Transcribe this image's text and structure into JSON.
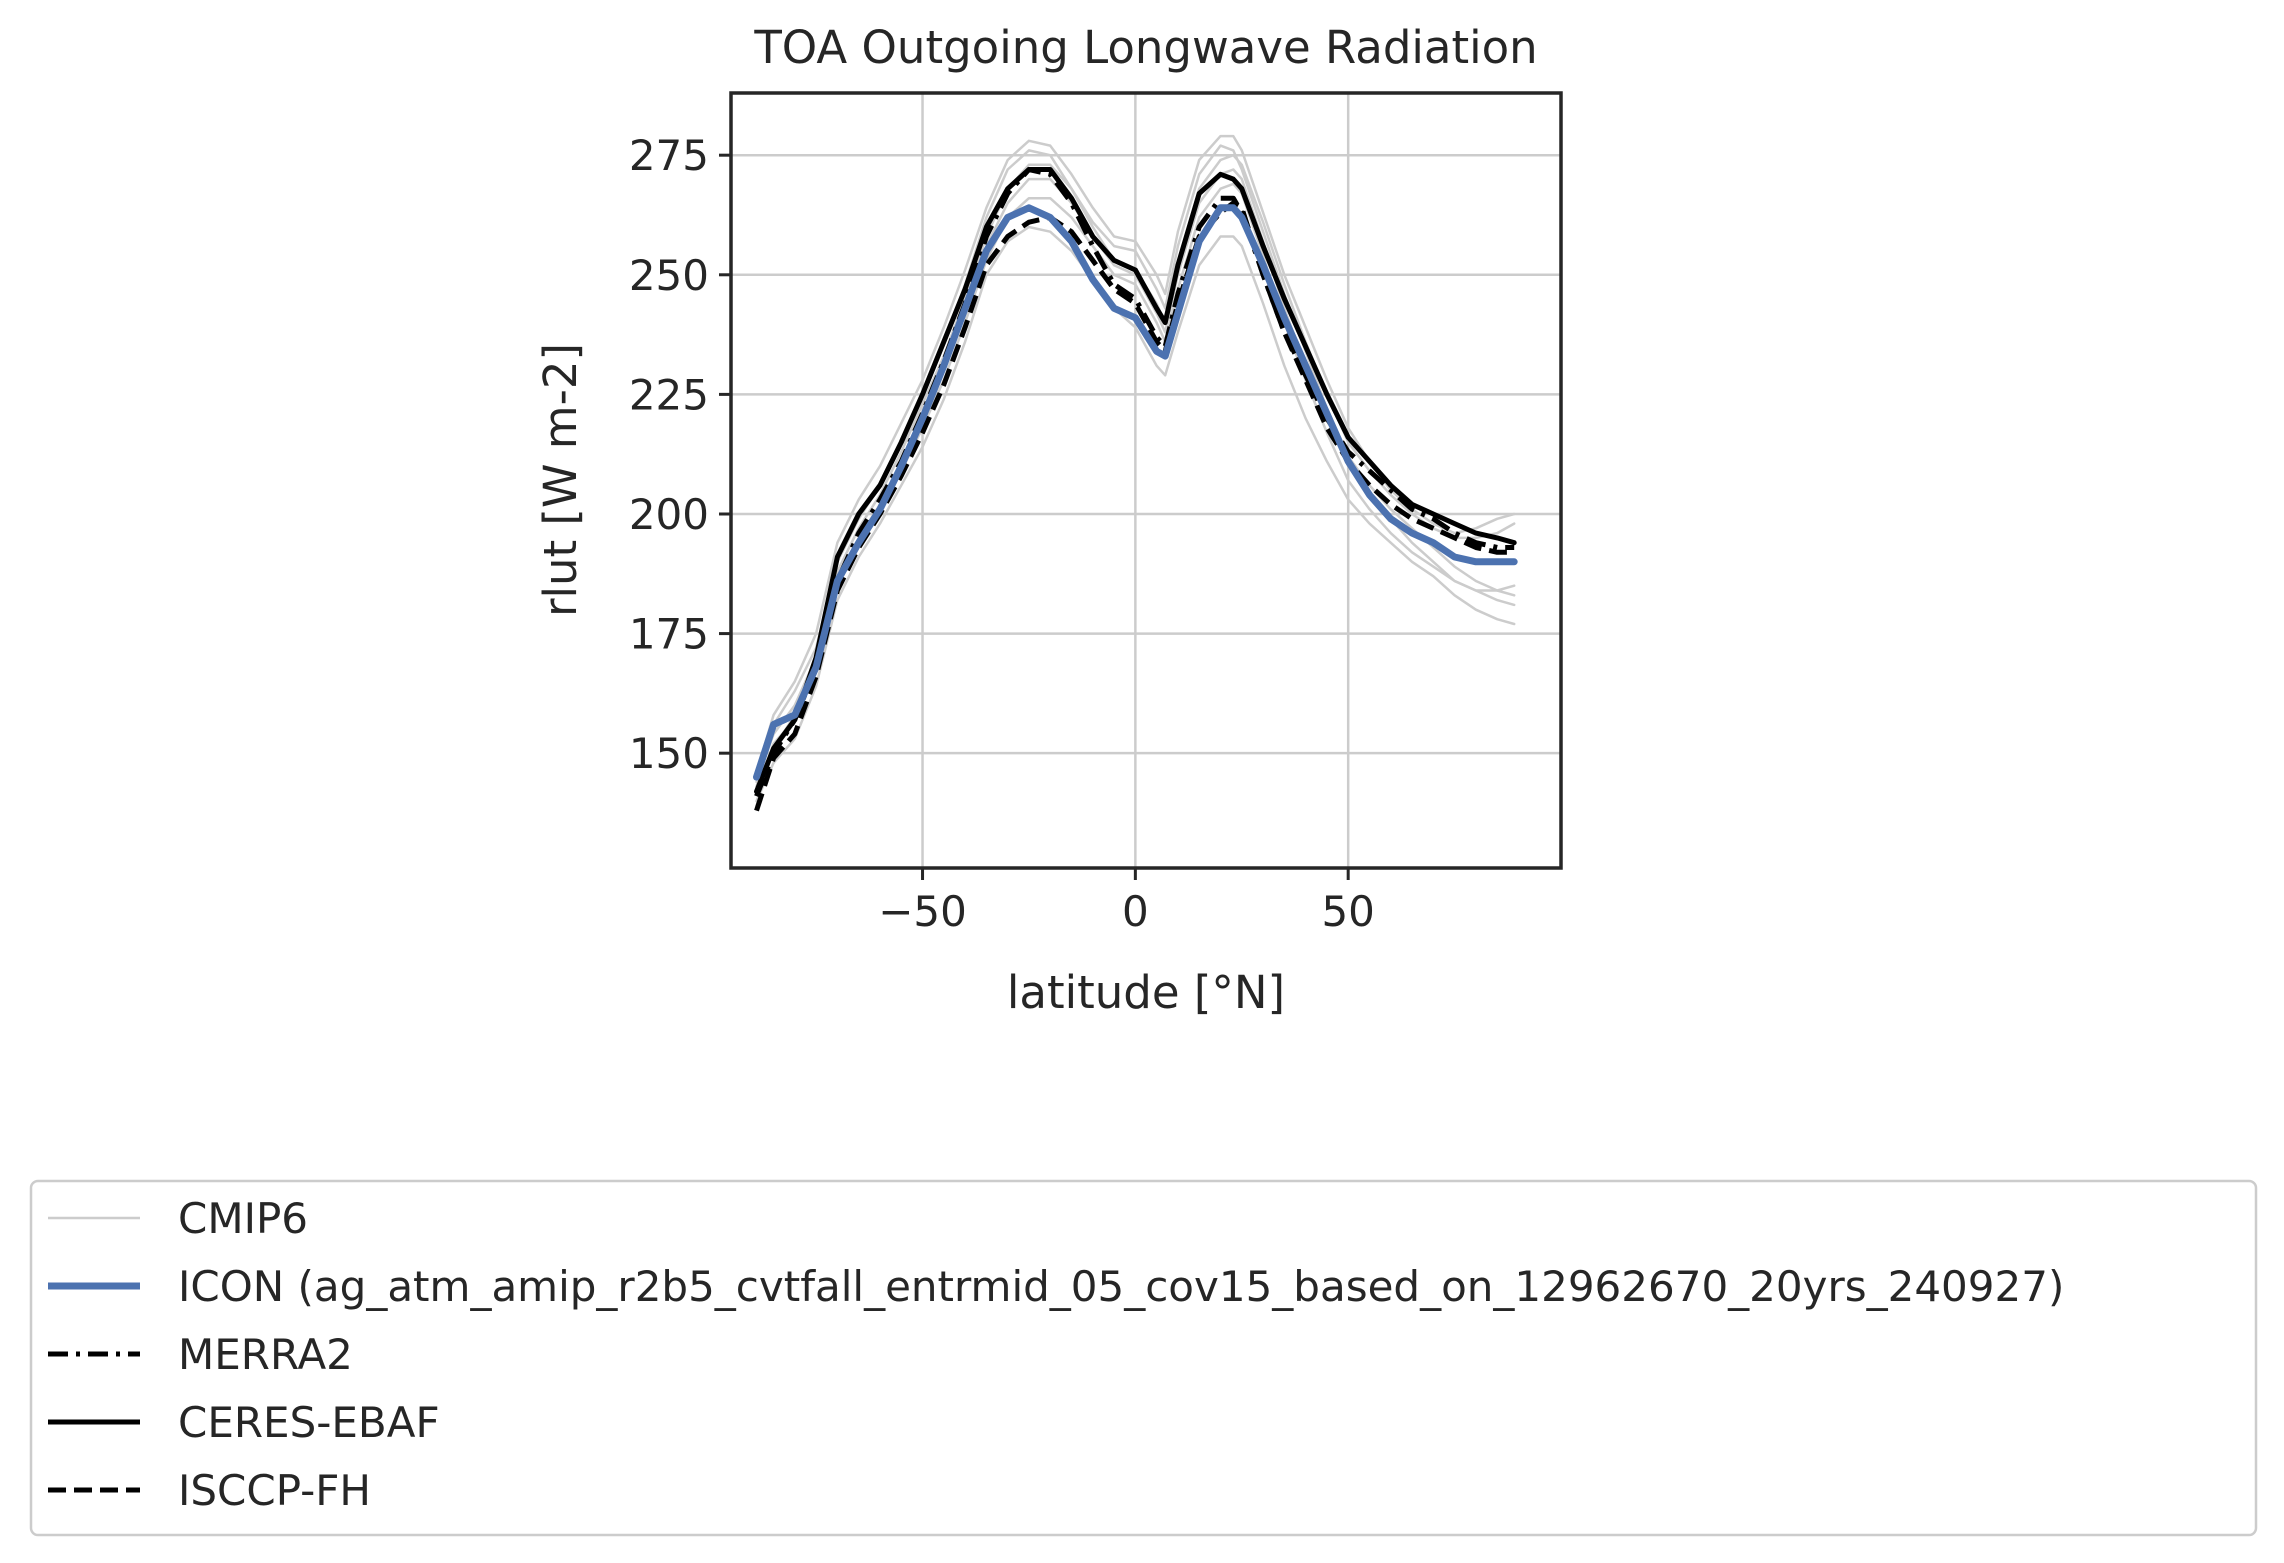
{
  "chart_data": {
    "type": "line",
    "title": "TOA Outgoing Longwave Radiation",
    "xlabel": "latitude [°N]",
    "ylabel": "rlut [W m-2]",
    "xlim": [
      -95,
      100
    ],
    "ylim": [
      126,
      288
    ],
    "xticks": [
      -50,
      0,
      50
    ],
    "xtick_labels": [
      "−50",
      "0",
      "50"
    ],
    "yticks": [
      150,
      175,
      200,
      225,
      250,
      275
    ],
    "ytick_labels": [
      "150",
      "175",
      "200",
      "225",
      "250",
      "275"
    ],
    "grid": true,
    "legend_position": "below the plot",
    "colors": {
      "cmip6": "#cccccc",
      "icon": "#4c72b0",
      "obs": "#000000",
      "grid": "#cccccc",
      "axes": "#262626"
    },
    "legend": [
      {
        "name": "CMIP6",
        "style": "thin-gray"
      },
      {
        "name": "ICON (ag_atm_amip_r2b5_cvtfall_entrmid_05_cov15_based_on_12962670_20yrs_240927)",
        "style": "thick-blue"
      },
      {
        "name": "MERRA2",
        "style": "dashdot"
      },
      {
        "name": "CERES-EBAF",
        "style": "solid"
      },
      {
        "name": "ISCCP-FH",
        "style": "dashed"
      }
    ],
    "x": [
      -89,
      -85,
      -80,
      -75,
      -70,
      -65,
      -60,
      -55,
      -50,
      -45,
      -40,
      -35,
      -30,
      -25,
      -20,
      -15,
      -10,
      -5,
      0,
      5,
      7,
      10,
      15,
      20,
      23,
      25,
      30,
      35,
      40,
      45,
      50,
      55,
      60,
      65,
      70,
      75,
      80,
      85,
      89
    ],
    "series": [
      {
        "name": "ICON (ag_atm_amip_r2b5_cvtfall_entrmid_05_cov15_based_on_12962670_20yrs_240927)",
        "kind": "icon",
        "values": [
          145,
          156,
          158,
          168,
          186,
          194,
          201,
          210,
          220,
          231,
          243,
          255,
          262,
          264,
          262,
          257,
          249,
          243,
          241,
          234,
          233,
          242,
          257,
          264,
          264,
          262,
          252,
          241,
          231,
          221,
          211,
          204,
          199,
          196,
          194,
          191,
          190,
          190,
          190
        ]
      },
      {
        "name": "MERRA2",
        "kind": "dashdot",
        "values": [
          141,
          150,
          157,
          168,
          186,
          196,
          203,
          211,
          221,
          232,
          244,
          258,
          267,
          272,
          271,
          265,
          256,
          248,
          245,
          237,
          235,
          246,
          260,
          266,
          266,
          263,
          250,
          238,
          229,
          220,
          213,
          209,
          205,
          201,
          199,
          196,
          194,
          193,
          193
        ]
      },
      {
        "name": "CERES-EBAF",
        "kind": "solid",
        "values": [
          142,
          151,
          157,
          170,
          191,
          200,
          206,
          215,
          225,
          236,
          247,
          260,
          268,
          272,
          272,
          266,
          258,
          253,
          251,
          243,
          240,
          252,
          267,
          271,
          270,
          268,
          256,
          245,
          235,
          225,
          216,
          211,
          206,
          202,
          200,
          198,
          196,
          195,
          194
        ]
      },
      {
        "name": "ISCCP-FH",
        "kind": "dashed",
        "values": [
          138,
          149,
          154,
          166,
          184,
          193,
          200,
          208,
          217,
          227,
          239,
          252,
          258,
          261,
          262,
          259,
          253,
          247,
          244,
          236,
          234,
          244,
          258,
          263,
          265,
          264,
          250,
          238,
          228,
          218,
          211,
          206,
          202,
          199,
          197,
          195,
          193,
          192,
          192
        ]
      },
      {
        "name": "CMIP6",
        "kind": "cmip",
        "values": [
          143,
          156,
          163,
          172,
          190,
          199,
          206,
          215,
          225,
          236,
          248,
          262,
          272,
          276,
          275,
          268,
          261,
          256,
          255,
          247,
          243,
          256,
          271,
          277,
          276,
          272,
          259,
          246,
          234,
          222,
          212,
          206,
          201,
          197,
          193,
          189,
          186,
          184,
          183
        ]
      },
      {
        "name": "CMIP6",
        "kind": "cmip",
        "values": [
          140,
          148,
          153,
          164,
          182,
          191,
          198,
          206,
          214,
          224,
          236,
          250,
          257,
          260,
          259,
          255,
          249,
          243,
          239,
          231,
          229,
          238,
          252,
          258,
          258,
          256,
          244,
          231,
          220,
          211,
          203,
          198,
          194,
          190,
          187,
          183,
          180,
          178,
          177
        ]
      },
      {
        "name": "CMIP6",
        "kind": "cmip",
        "values": [
          146,
          158,
          165,
          175,
          194,
          203,
          210,
          219,
          228,
          239,
          251,
          264,
          274,
          278,
          277,
          271,
          264,
          258,
          257,
          250,
          246,
          259,
          274,
          279,
          279,
          276,
          263,
          250,
          239,
          228,
          218,
          211,
          205,
          201,
          198,
          196,
          197,
          199,
          200
        ]
      },
      {
        "name": "CMIP6",
        "kind": "cmip",
        "values": [
          139,
          151,
          158,
          168,
          186,
          195,
          202,
          211,
          220,
          230,
          242,
          256,
          265,
          270,
          270,
          265,
          258,
          252,
          250,
          242,
          238,
          250,
          265,
          271,
          272,
          270,
          257,
          243,
          231,
          220,
          210,
          204,
          199,
          194,
          190,
          186,
          184,
          184,
          185
        ]
      },
      {
        "name": "CMIP6",
        "kind": "cmip",
        "values": [
          144,
          154,
          160,
          170,
          188,
          197,
          204,
          213,
          223,
          233,
          245,
          258,
          268,
          273,
          273,
          268,
          260,
          253,
          251,
          244,
          240,
          252,
          268,
          274,
          275,
          273,
          261,
          248,
          236,
          225,
          215,
          209,
          204,
          200,
          197,
          195,
          195,
          196,
          198
        ]
      },
      {
        "name": "CMIP6",
        "kind": "cmip",
        "values": [
          142,
          152,
          157,
          167,
          185,
          194,
          201,
          209,
          218,
          228,
          240,
          253,
          262,
          266,
          266,
          262,
          256,
          250,
          248,
          240,
          236,
          247,
          262,
          268,
          269,
          267,
          254,
          240,
          228,
          217,
          207,
          201,
          196,
          192,
          189,
          186,
          184,
          182,
          181
        ]
      }
    ]
  }
}
